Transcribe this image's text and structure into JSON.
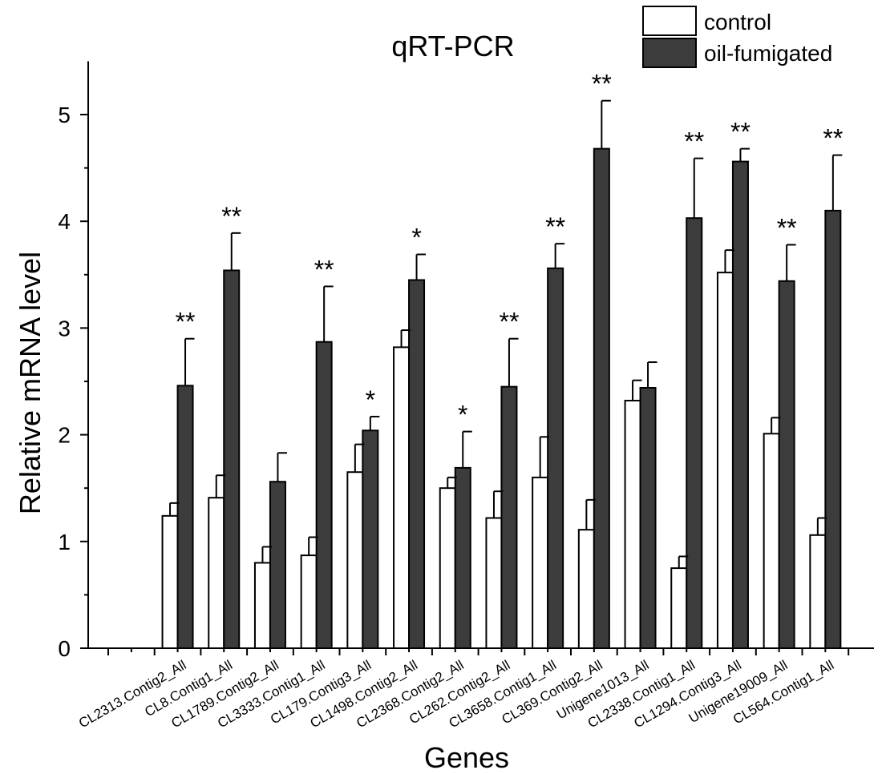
{
  "chart_data": {
    "type": "bar",
    "title": "qRT-PCR",
    "xlabel": "Genes",
    "ylabel": "Relative mRNA level",
    "ylim": [
      0,
      5.5
    ],
    "yticks": [
      0,
      1,
      2,
      3,
      4,
      5
    ],
    "grid": false,
    "legend_position": "top-right",
    "error_bars": true,
    "categories": [
      "CL2313.Contig2_All",
      "CL8.Contig1_All",
      "CL1789.Contig2_All",
      "CL3333.Contig1_All",
      "CL179.Contig3_All",
      "CL1498.Contig2_All",
      "CL2368.Contig2_All",
      "CL262.Contig2_All",
      "CL3658.Contig1_All",
      "CL369.Contig2_All",
      "Unigene1013_All",
      "CL2338.Contig1_All",
      "CL1294.Contig3_All",
      "Unigene19009_All",
      "CL564.Contig1_All"
    ],
    "series": [
      {
        "name": "control",
        "color": "#ffffff",
        "values": [
          1.24,
          1.41,
          0.8,
          0.87,
          1.65,
          2.82,
          1.5,
          1.22,
          1.6,
          1.11,
          2.32,
          0.75,
          3.52,
          2.01,
          1.06
        ],
        "errors": [
          0.12,
          0.21,
          0.15,
          0.17,
          0.26,
          0.16,
          0.1,
          0.25,
          0.38,
          0.28,
          0.19,
          0.11,
          0.21,
          0.15,
          0.16
        ]
      },
      {
        "name": "oil-fumigated",
        "color": "#3c3c3c",
        "values": [
          2.46,
          3.54,
          1.56,
          2.87,
          2.04,
          3.45,
          1.69,
          2.45,
          3.56,
          4.68,
          2.44,
          4.03,
          4.56,
          3.44,
          4.1
        ],
        "errors": [
          0.44,
          0.35,
          0.27,
          0.52,
          0.13,
          0.24,
          0.34,
          0.45,
          0.23,
          0.45,
          0.24,
          0.56,
          0.12,
          0.34,
          0.52
        ]
      }
    ],
    "significance": [
      "**",
      "**",
      "",
      "**",
      "*",
      "*",
      "*",
      "**",
      "**",
      "**",
      "",
      "**",
      "**",
      "**",
      "**"
    ]
  }
}
